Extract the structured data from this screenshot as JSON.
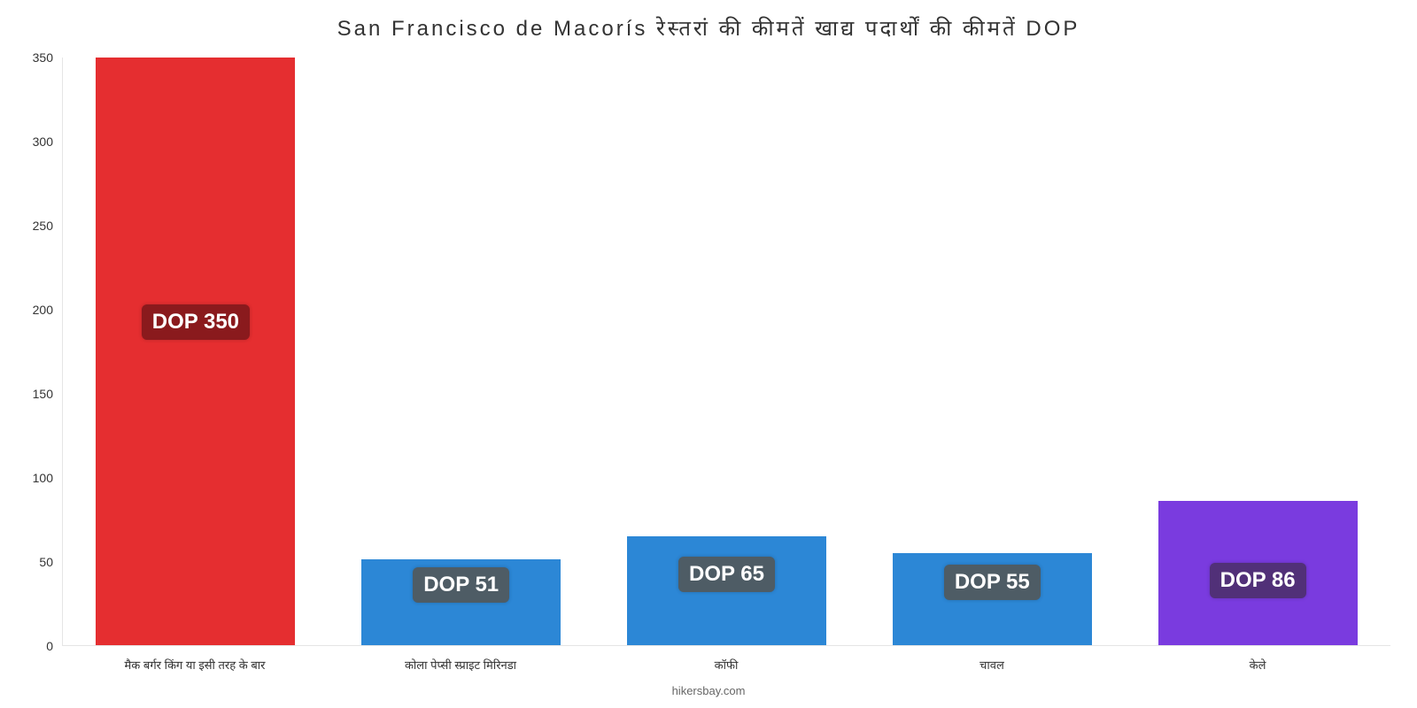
{
  "background_color": "#ffffff",
  "title": "San Francisco de Macorís रेस्तरां की कीमतें खाद्य पदार्थों की कीमतें DOP",
  "title_color": "#333333",
  "title_fontsize": 24,
  "footer": "hikersbay.com",
  "y_axis": {
    "min": 0,
    "max": 350,
    "tick_step": 50,
    "ticks": [
      0,
      50,
      100,
      150,
      200,
      250,
      300,
      350
    ],
    "label_color": "#333333",
    "label_fontsize": 14
  },
  "value_badge": {
    "fontsize": 24,
    "text_color": "#ffffff"
  },
  "x_label_fontsize": 13,
  "x_label_color": "#333333",
  "bars": [
    {
      "category": "मैक बर्गर किंग या इसी तरह के बार",
      "value": 350,
      "label": "DOP 350",
      "bar_color": "#e52e30",
      "badge_bg": "#8a1a1d",
      "badge_top_pct": 45
    },
    {
      "category": "कोला पेप्सी स्प्राइट मिरिनडा",
      "value": 51,
      "label": "DOP 51",
      "bar_color": "#2c87d6",
      "badge_bg": "#4e5c65",
      "badge_top_pct": 30
    },
    {
      "category": "कॉफी",
      "value": 65,
      "label": "DOP 65",
      "bar_color": "#2c87d6",
      "badge_bg": "#4e5c65",
      "badge_top_pct": 35
    },
    {
      "category": "चावल",
      "value": 55,
      "label": "DOP 55",
      "bar_color": "#2c87d6",
      "badge_bg": "#4e5c65",
      "badge_top_pct": 32
    },
    {
      "category": "केले",
      "value": 86,
      "label": "DOP 86",
      "bar_color": "#7a3bdf",
      "badge_bg": "#513078",
      "badge_top_pct": 55
    }
  ]
}
